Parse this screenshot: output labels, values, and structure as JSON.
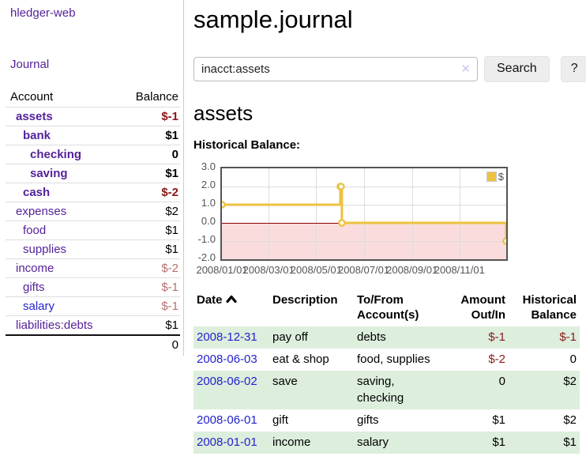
{
  "app": {
    "brand": "hledger-web"
  },
  "nav": {
    "journal": "Journal"
  },
  "sidebar": {
    "header": {
      "account": "Account",
      "balance": "Balance"
    },
    "accounts": [
      {
        "name": "assets",
        "depth": 0,
        "bold": true,
        "balance": "$-1",
        "balance_class": "neg strong"
      },
      {
        "name": "bank",
        "depth": 1,
        "bold": true,
        "balance": "$1",
        "balance_class": "pos strong"
      },
      {
        "name": "checking",
        "depth": 2,
        "bold": true,
        "balance": "0",
        "balance_class": "pos strong"
      },
      {
        "name": "saving",
        "depth": 2,
        "bold": true,
        "balance": "$1",
        "balance_class": "pos strong"
      },
      {
        "name": "cash",
        "depth": 1,
        "bold": true,
        "balance": "$-2",
        "balance_class": "neg strong"
      },
      {
        "name": "expenses",
        "depth": 0,
        "bold": false,
        "balance": "$2",
        "balance_class": "pos"
      },
      {
        "name": "food",
        "depth": 1,
        "bold": false,
        "balance": "$1",
        "balance_class": "pos"
      },
      {
        "name": "supplies",
        "depth": 1,
        "bold": false,
        "balance": "$1",
        "balance_class": "pos"
      },
      {
        "name": "income",
        "depth": 0,
        "bold": false,
        "balance": "$-2",
        "balance_class": "neg muted"
      },
      {
        "name": "gifts",
        "depth": 1,
        "bold": false,
        "balance": "$-1",
        "balance_class": "neg muted"
      },
      {
        "name": "salary",
        "depth": 1,
        "bold": false,
        "blue": true,
        "balance": "$-1",
        "balance_class": "neg muted"
      },
      {
        "name": "liabilities:debts",
        "depth": 0,
        "bold": false,
        "balance": "$1",
        "balance_class": "pos"
      }
    ],
    "total": "0"
  },
  "main": {
    "title": "sample.journal",
    "search": {
      "value": "inacct:assets",
      "clear": "✕",
      "search_label": "Search",
      "help_label": "?"
    },
    "heading": "assets",
    "chart_title": "Historical Balance:"
  },
  "chart_data": {
    "type": "line",
    "step": true,
    "title": "Historical Balance",
    "x_range": [
      "2008-01-01",
      "2008-12-31"
    ],
    "ylim": [
      -2,
      3
    ],
    "y_ticks": [
      "3.0",
      "2.0",
      "1.0",
      "0.0",
      "-1.0",
      "-2.0"
    ],
    "x_ticks": [
      "2008/01/01",
      "2008/03/01",
      "2008/05/01",
      "2008/07/01",
      "2008/09/01",
      "2008/11/01"
    ],
    "series": [
      {
        "name": "$",
        "color": "#EDC240",
        "points": [
          [
            "2008-01-01",
            1
          ],
          [
            "2008-06-01",
            2
          ],
          [
            "2008-06-02",
            2
          ],
          [
            "2008-06-03",
            0
          ],
          [
            "2008-12-31",
            -1
          ]
        ]
      }
    ],
    "legend_position": "top-right",
    "grid": true,
    "colors": {
      "grid": "#dcdcdc",
      "border": "#545454",
      "zero_line": "#8b0000",
      "negative_region": "#fbdcdc",
      "tick_text": "#545454"
    }
  },
  "register": {
    "headers": {
      "date": "Date",
      "description": "Description",
      "accounts": "To/From Account(s)",
      "amount": "Amount Out/In",
      "balance": "Historical Balance"
    },
    "sort": {
      "column": "date",
      "direction": "ascending"
    },
    "rows": [
      {
        "date": "2008-12-31",
        "description": "pay off",
        "accounts": "debts",
        "amount": "$-1",
        "amount_neg": true,
        "balance": "$-1",
        "balance_neg": true
      },
      {
        "date": "2008-06-03",
        "description": "eat & shop",
        "accounts": "food, supplies",
        "amount": "$-2",
        "amount_neg": true,
        "balance": "0",
        "balance_neg": false
      },
      {
        "date": "2008-06-02",
        "description": "save",
        "accounts": "saving, checking",
        "amount": "0",
        "amount_neg": false,
        "balance": "$2",
        "balance_neg": false
      },
      {
        "date": "2008-06-01",
        "description": "gift",
        "accounts": "gifts",
        "amount": "$1",
        "amount_neg": false,
        "balance": "$2",
        "balance_neg": false
      },
      {
        "date": "2008-01-01",
        "description": "income",
        "accounts": "salary",
        "amount": "$1",
        "amount_neg": false,
        "balance": "$1",
        "balance_neg": false
      }
    ]
  },
  "colors": {
    "accent_purple": "#55229b",
    "link_blue": "#2323cf",
    "negative_strong": "#8b1515",
    "negative_muted": "#b56f6f",
    "stripe_green": "#ddeedd",
    "series_gold": "#EDC240"
  }
}
